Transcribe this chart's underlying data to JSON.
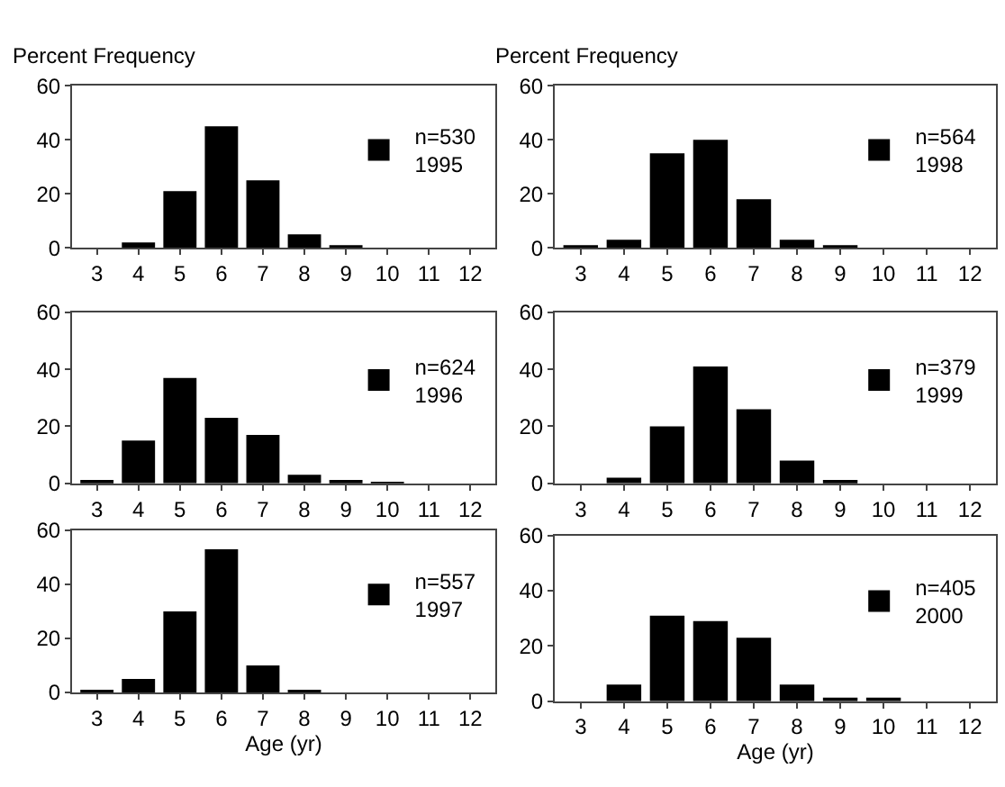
{
  "chart_data": [
    {
      "type": "bar",
      "title": "Percent Frequency",
      "categories": [
        "3",
        "4",
        "5",
        "6",
        "7",
        "8",
        "9",
        "10",
        "11",
        "12"
      ],
      "series": [
        {
          "name": "n=530\n1995",
          "color": "#000000",
          "values": [
            0,
            2,
            21,
            45,
            25,
            5,
            1,
            0,
            0,
            0
          ]
        }
      ],
      "ylim": [
        0,
        60
      ],
      "yticks": [
        0,
        20,
        40,
        60
      ],
      "legend": "right"
    },
    {
      "type": "bar",
      "title": "Percent Frequency",
      "categories": [
        "3",
        "4",
        "5",
        "6",
        "7",
        "8",
        "9",
        "10",
        "11",
        "12"
      ],
      "series": [
        {
          "name": "n=564\n1998",
          "color": "#000000",
          "values": [
            1,
            3,
            35,
            40,
            18,
            3,
            1,
            0,
            0,
            0
          ]
        }
      ],
      "ylim": [
        0,
        60
      ],
      "yticks": [
        0,
        20,
        40,
        60
      ],
      "legend": "right"
    },
    {
      "type": "bar",
      "categories": [
        "3",
        "4",
        "5",
        "6",
        "7",
        "8",
        "9",
        "10",
        "11",
        "12"
      ],
      "series": [
        {
          "name": "n=624\n1996",
          "color": "#000000",
          "values": [
            1,
            15,
            37,
            23,
            17,
            3,
            1,
            0.5,
            0,
            0
          ]
        }
      ],
      "ylim": [
        0,
        60
      ],
      "yticks": [
        0,
        20,
        40,
        60
      ],
      "legend": "right"
    },
    {
      "type": "bar",
      "categories": [
        "3",
        "4",
        "5",
        "6",
        "7",
        "8",
        "9",
        "10",
        "11",
        "12"
      ],
      "series": [
        {
          "name": "n=379\n1999",
          "color": "#000000",
          "values": [
            0,
            2,
            20,
            41,
            26,
            8,
            1,
            0,
            0,
            0
          ]
        }
      ],
      "ylim": [
        0,
        60
      ],
      "yticks": [
        0,
        20,
        40,
        60
      ],
      "legend": "right"
    },
    {
      "type": "bar",
      "xlabel": "Age (yr)",
      "categories": [
        "3",
        "4",
        "5",
        "6",
        "7",
        "8",
        "9",
        "10",
        "11",
        "12"
      ],
      "series": [
        {
          "name": "n=557\n1997",
          "color": "#000000",
          "values": [
            1,
            5,
            30,
            53,
            10,
            1,
            0,
            0,
            0,
            0
          ]
        }
      ],
      "ylim": [
        0,
        60
      ],
      "yticks": [
        0,
        20,
        40,
        60
      ],
      "legend": "right"
    },
    {
      "type": "bar",
      "xlabel": "Age (yr)",
      "categories": [
        "3",
        "4",
        "5",
        "6",
        "7",
        "8",
        "9",
        "10",
        "11",
        "12"
      ],
      "series": [
        {
          "name": "n=405\n2000",
          "color": "#000000",
          "values": [
            0,
            6,
            31,
            29,
            23,
            6,
            1,
            1,
            0,
            0
          ]
        }
      ],
      "ylim": [
        0,
        60
      ],
      "yticks": [
        0,
        20,
        40,
        60
      ],
      "legend": "right"
    }
  ]
}
